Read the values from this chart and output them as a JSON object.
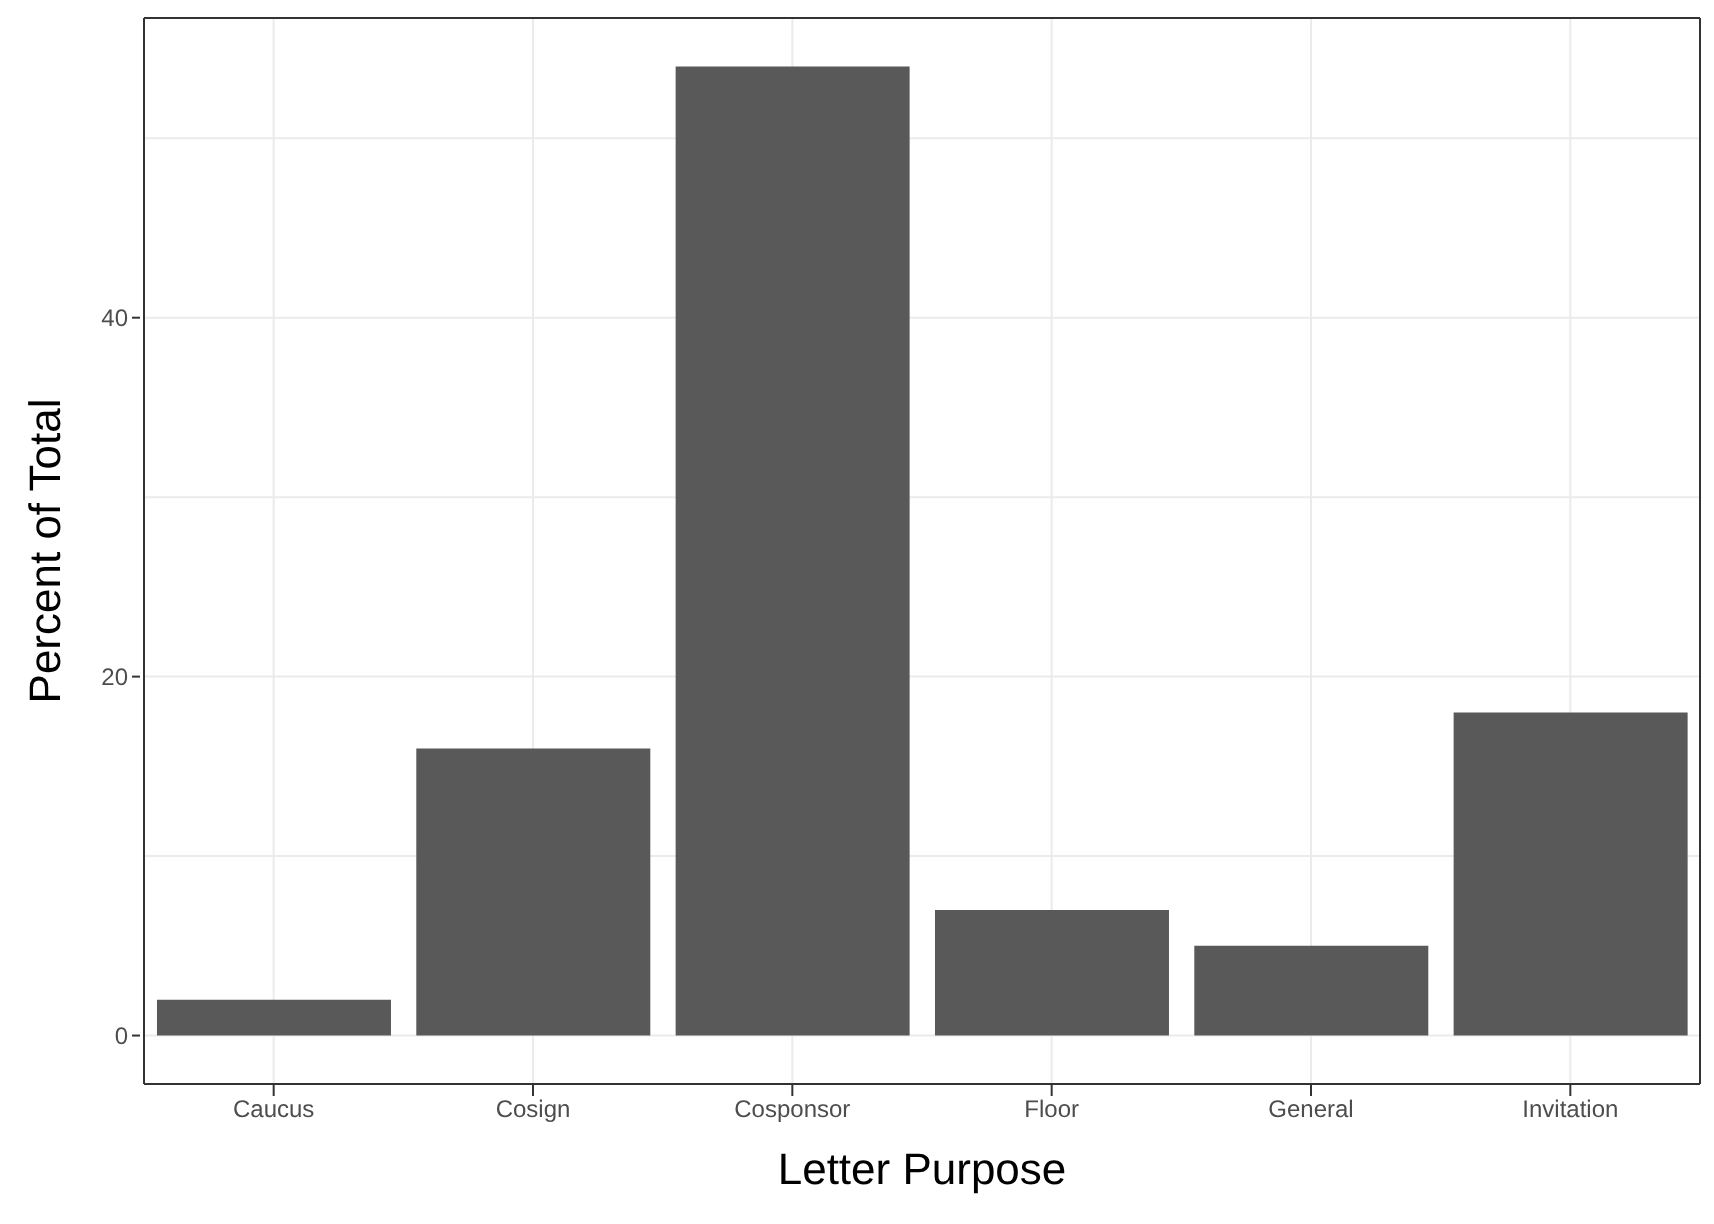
{
  "chart_data": {
    "type": "bar",
    "xlabel": "Letter Purpose",
    "ylabel": "Percent of Total",
    "categories": [
      "Caucus",
      "Cosign",
      "Cosponsor",
      "Floor",
      "General",
      "Invitation"
    ],
    "values": [
      2,
      16,
      54,
      7,
      5,
      18
    ],
    "color": "#595959",
    "ylim": [
      -2.7,
      56.7
    ],
    "yticks": [
      0,
      {
        "value": 10,
        "label": null
      },
      20,
      {
        "value": 30,
        "label": null
      },
      40,
      {
        "value": 50,
        "label": null
      }
    ],
    "grid": true
  }
}
